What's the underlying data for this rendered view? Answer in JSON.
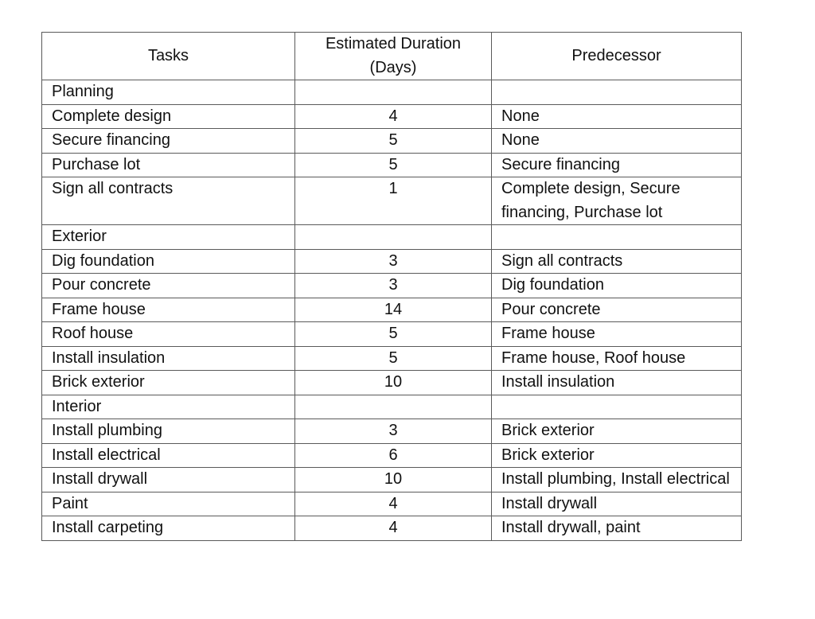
{
  "headers": {
    "task": "Tasks",
    "duration": "Estimated Duration (Days)",
    "predecessor": "Predecessor"
  },
  "rows": [
    {
      "type": "group",
      "task": "Planning",
      "duration": "",
      "predecessor": ""
    },
    {
      "type": "task",
      "task": "Complete design",
      "duration": "4",
      "predecessor": "None"
    },
    {
      "type": "task",
      "task": "Secure financing",
      "duration": "5",
      "predecessor": "None"
    },
    {
      "type": "task",
      "task": "Purchase lot",
      "duration": "5",
      "predecessor": "Secure financing"
    },
    {
      "type": "task",
      "task": "Sign all contracts",
      "duration": "1",
      "predecessor": "Complete design, Secure financing, Purchase lot"
    },
    {
      "type": "group",
      "task": "Exterior",
      "duration": "",
      "predecessor": ""
    },
    {
      "type": "task",
      "task": "Dig foundation",
      "duration": "3",
      "predecessor": "Sign all contracts"
    },
    {
      "type": "task",
      "task": "Pour concrete",
      "duration": "3",
      "predecessor": "Dig foundation"
    },
    {
      "type": "task",
      "task": "Frame house",
      "duration": "14",
      "predecessor": "Pour concrete"
    },
    {
      "type": "task",
      "task": "Roof house",
      "duration": "5",
      "predecessor": "Frame house"
    },
    {
      "type": "task",
      "task": "Install insulation",
      "duration": "5",
      "predecessor": "Frame house, Roof house"
    },
    {
      "type": "task",
      "task": "Brick exterior",
      "duration": "10",
      "predecessor": "Install insulation"
    },
    {
      "type": "group",
      "task": "Interior",
      "duration": "",
      "predecessor": ""
    },
    {
      "type": "task",
      "task": "Install plumbing",
      "duration": "3",
      "predecessor": "Brick exterior"
    },
    {
      "type": "task",
      "task": "Install electrical",
      "duration": "6",
      "predecessor": "Brick exterior"
    },
    {
      "type": "task",
      "task": "Install drywall",
      "duration": "10",
      "predecessor": "Install plumbing, Install electrical"
    },
    {
      "type": "task",
      "task": "Paint",
      "duration": "4",
      "predecessor": "Install drywall"
    },
    {
      "type": "task",
      "task": "Install carpeting",
      "duration": "4",
      "predecessor": "Install drywall, paint"
    }
  ]
}
